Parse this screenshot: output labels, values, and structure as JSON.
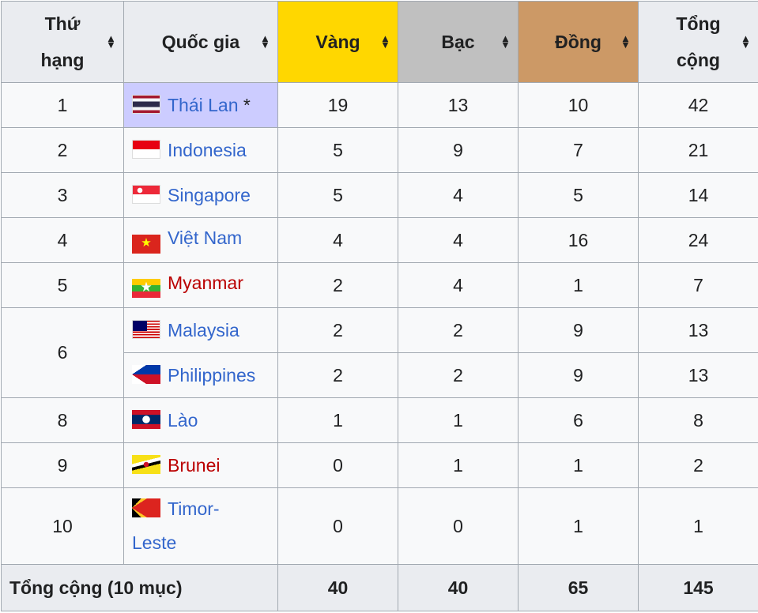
{
  "headers": {
    "rank": "Thứ hạng",
    "rank1": "Thứ",
    "rank2": "hạng",
    "country": "Quốc gia",
    "gold": "Vàng",
    "silver": "Bạc",
    "bronze": "Đồng",
    "total1": "Tổng",
    "total2": "cộng"
  },
  "colors": {
    "gold": "#ffd700",
    "silver": "#c0c0c0",
    "bronze": "#cc9966",
    "host": "#ccccff",
    "link": "#3366cc",
    "redlink": "#ba0000"
  },
  "rows": [
    {
      "rank": "1",
      "country": "Thái Lan",
      "host_mark": "*",
      "gold": "19",
      "silver": "13",
      "bronze": "10",
      "total": "42"
    },
    {
      "rank": "2",
      "country": "Indonesia",
      "gold": "5",
      "silver": "9",
      "bronze": "7",
      "total": "21"
    },
    {
      "rank": "3",
      "country": "Singapore",
      "gold": "5",
      "silver": "4",
      "bronze": "5",
      "total": "14"
    },
    {
      "rank": "4",
      "country": "Việt Nam",
      "gold": "4",
      "silver": "4",
      "bronze": "16",
      "total": "24"
    },
    {
      "rank": "5",
      "country": "Myanmar",
      "gold": "2",
      "silver": "4",
      "bronze": "1",
      "total": "7"
    },
    {
      "rank": "6",
      "country": "Malaysia",
      "gold": "2",
      "silver": "2",
      "bronze": "9",
      "total": "13"
    },
    {
      "rank": "6",
      "country": "Philippines",
      "gold": "2",
      "silver": "2",
      "bronze": "9",
      "total": "13"
    },
    {
      "rank": "8",
      "country": "Lào",
      "gold": "1",
      "silver": "1",
      "bronze": "6",
      "total": "8"
    },
    {
      "rank": "9",
      "country": "Brunei",
      "gold": "0",
      "silver": "1",
      "bronze": "1",
      "total": "2"
    },
    {
      "rank": "10",
      "country": "Timor-Leste",
      "country1": "Timor-",
      "country2": "Leste",
      "gold": "0",
      "silver": "0",
      "bronze": "1",
      "total": "1"
    }
  ],
  "totals": {
    "label": "Tổng cộng (10 mục)",
    "gold": "40",
    "silver": "40",
    "bronze": "65",
    "total": "145"
  }
}
